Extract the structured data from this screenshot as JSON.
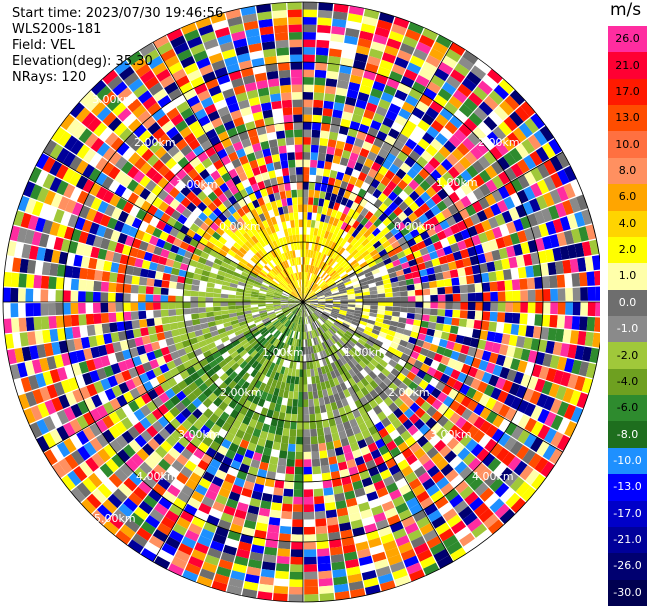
{
  "header": {
    "start_time": "Start time: 2023/07/30 19:46:56",
    "instrument": "WLS200s-181",
    "field": "Field: VEL",
    "elevation": "Elevation(deg): 35.30",
    "nrays": "NRays: 120"
  },
  "colorbar": {
    "unit": "m/s",
    "tick_labels": [
      "26.0",
      "21.0",
      "17.0",
      "13.0",
      "10.0",
      "8.0",
      "6.0",
      "4.0",
      "2.0",
      "1.0",
      "0.0",
      "-1.0",
      "-2.0",
      "-4.0",
      "-6.0",
      "-8.0",
      "-10.0",
      "-13.0",
      "-17.0",
      "-21.0",
      "-26.0",
      "-30.0"
    ],
    "colors": [
      "#ff2da0",
      "#ff0033",
      "#ff1a00",
      "#ff4d00",
      "#ff7040",
      "#ff9060",
      "#ffa500",
      "#ffd400",
      "#ffff00",
      "#ffffaa",
      "#6e6e6e",
      "#8a8a8a",
      "#a0c83a",
      "#6ea020",
      "#2e8b2e",
      "#1e6e1e",
      "#1e90ff",
      "#0000ff",
      "#0000c8",
      "#00009a",
      "#000070",
      "#000050"
    ]
  },
  "rings": {
    "labels_upper_left": [
      "3.00km",
      "2.00km",
      "1.00km",
      "0.00km"
    ],
    "labels_upper_right": [
      "2.00km",
      "1.00km",
      "0.00km"
    ],
    "labels_lower_left": [
      "1.00km",
      "2.00km",
      "3.00km",
      "4.00km",
      "5.00km"
    ],
    "labels_lower_right": [
      "1.00km",
      "2.00km",
      "3.00km",
      "4.00km"
    ]
  }
}
